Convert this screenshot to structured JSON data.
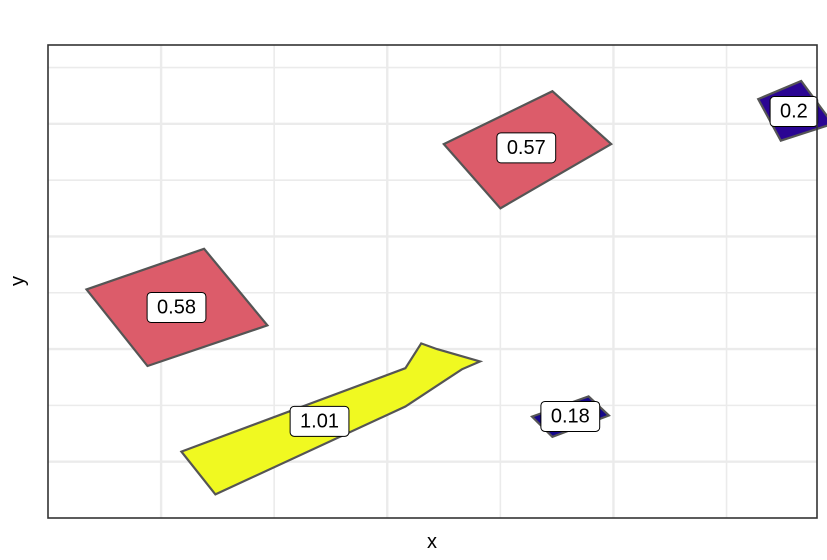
{
  "chart_data": {
    "type": "polygon",
    "xlabel": "x",
    "ylabel": "y",
    "grid": true,
    "xlim": [
      0.0,
      3.4
    ],
    "ylim": [
      0.0,
      4.2
    ],
    "x_major_ticks": [
      0.5,
      1.5,
      2.5,
      3.5
    ],
    "y_major_ticks": [
      0.5,
      1.5,
      2.5,
      3.5
    ],
    "value_scale": {
      "low_color": "#0d0887",
      "mid_color": "#cc4778",
      "high_color": "#f0f921"
    },
    "shapes": [
      {
        "label": "0.58",
        "value": 0.58,
        "color": "#dc5c6a",
        "points": [
          [
            0.17,
            2.03
          ],
          [
            0.69,
            2.39
          ],
          [
            0.97,
            1.71
          ],
          [
            0.44,
            1.35
          ]
        ]
      },
      {
        "label": "1.01",
        "value": 1.01,
        "color": "#f0f921",
        "points": [
          [
            0.59,
            0.59
          ],
          [
            1.58,
            1.33
          ],
          [
            1.65,
            1.55
          ],
          [
            1.72,
            1.5
          ],
          [
            1.91,
            1.39
          ],
          [
            1.83,
            1.32
          ],
          [
            1.58,
            0.99
          ],
          [
            0.74,
            0.21
          ],
          [
            0.59,
            0.59
          ]
        ]
      },
      {
        "label": "0.57",
        "value": 0.57,
        "color": "#dc5c6a",
        "points": [
          [
            1.75,
            3.32
          ],
          [
            2.23,
            3.79
          ],
          [
            2.49,
            3.32
          ],
          [
            2.0,
            2.75
          ]
        ]
      },
      {
        "label": "0.2",
        "value": 0.2,
        "color": "#2a0593",
        "points": [
          [
            3.14,
            3.72
          ],
          [
            3.33,
            3.88
          ],
          [
            3.47,
            3.5
          ],
          [
            3.24,
            3.35
          ]
        ]
      },
      {
        "label": "0.18",
        "value": 0.18,
        "color": "#16078a",
        "points": [
          [
            2.14,
            0.9
          ],
          [
            2.39,
            1.08
          ],
          [
            2.48,
            0.91
          ],
          [
            2.23,
            0.72
          ]
        ]
      }
    ]
  }
}
